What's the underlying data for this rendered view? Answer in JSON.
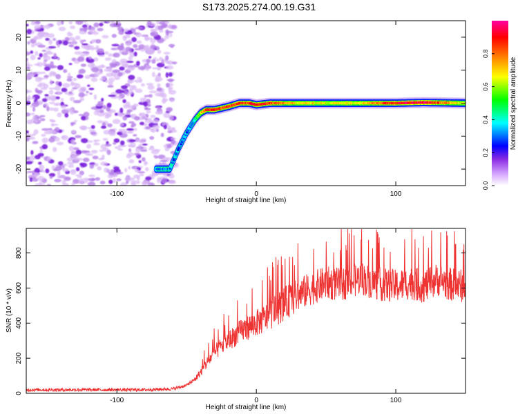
{
  "title": "S173.2025.274.00.19.G31",
  "chart_data": [
    {
      "type": "heatmap",
      "panel": "spectrogram",
      "xlabel": "Height of straight line (km)",
      "ylabel": "Frequency (Hz)",
      "xlim": [
        -165,
        150
      ],
      "ylim": [
        -25,
        25
      ],
      "xticks": [
        -100,
        0,
        100
      ],
      "yticks": [
        -20,
        -10,
        0,
        10,
        20
      ],
      "colorbar": {
        "label": "Normalized spectral amplitude",
        "range": [
          0,
          1
        ],
        "ticks": [
          0.0,
          0.2,
          0.4,
          0.6,
          0.8
        ],
        "tick_labels": [
          "0.0",
          "0.2",
          "0.4",
          "0.6",
          "0.8"
        ],
        "colors": [
          "#ffffff",
          "#8a2be2",
          "#0000ff",
          "#00ffff",
          "#00ff00",
          "#ffff00",
          "#ff8000",
          "#ff0000",
          "#ff00a0"
        ]
      },
      "noise_region": {
        "x": [
          -165,
          -58
        ],
        "y": [
          -25,
          25
        ],
        "color": "#8a2be2"
      },
      "signal_trace": {
        "x": [
          -72,
          -62,
          -56,
          -50,
          -44,
          -40,
          -36,
          -30,
          -25,
          -20,
          -12,
          -5,
          0,
          10,
          25,
          50,
          75,
          100,
          120,
          150
        ],
        "y": [
          -20,
          -20,
          -14,
          -9,
          -5,
          -3,
          -2,
          -2,
          -1.5,
          -1,
          0,
          0,
          -0.5,
          0,
          0,
          0,
          0,
          0,
          0.2,
          0
        ],
        "amplitude": [
          0.3,
          0.35,
          0.3,
          0.3,
          0.4,
          0.65,
          0.85,
          0.9,
          0.8,
          0.85,
          0.85,
          0.85,
          0.9,
          0.85,
          0.7,
          0.65,
          0.7,
          0.9,
          0.95,
          0.6
        ]
      }
    },
    {
      "type": "line",
      "panel": "snr",
      "xlabel": "Height of straight line (km)",
      "ylabel": "SNR (10 * v/v)",
      "xlim": [
        -165,
        150
      ],
      "ylim": [
        0,
        940
      ],
      "xticks": [
        -100,
        0,
        100
      ],
      "yticks": [
        0,
        200,
        400,
        600,
        800
      ],
      "color": "#ee3333",
      "series": [
        {
          "name": "SNR",
          "x": [
            -165,
            -120,
            -80,
            -60,
            -50,
            -44,
            -40,
            -35,
            -30,
            -25,
            -20,
            -15,
            -10,
            -5,
            0,
            5,
            10,
            20,
            30,
            40,
            50,
            60,
            70,
            75,
            80,
            90,
            100,
            110,
            120,
            130,
            140,
            150
          ],
          "y": [
            15,
            15,
            15,
            20,
            40,
            80,
            120,
            180,
            230,
            270,
            300,
            330,
            360,
            380,
            400,
            420,
            450,
            510,
            560,
            600,
            630,
            620,
            640,
            660,
            640,
            620,
            610,
            630,
            610,
            650,
            620,
            610
          ]
        }
      ]
    }
  ]
}
